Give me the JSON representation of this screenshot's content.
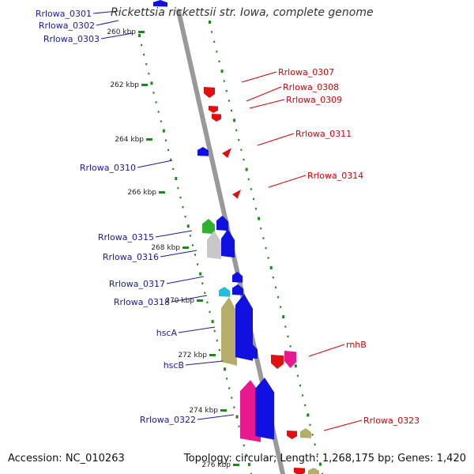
{
  "title": "Rickettsia rickettsii str. Iowa, complete genome",
  "footer": {
    "accession": "Accession: NC_010263",
    "summary": "Topology: circular; Length: 1,268,175 bp; Genes: 1,420"
  },
  "ruler": [
    {
      "label": "260 kbp",
      "kbp": 260
    },
    {
      "label": "262 kbp",
      "kbp": 262
    },
    {
      "label": "264 kbp",
      "kbp": 264
    },
    {
      "label": "266 kbp",
      "kbp": 266
    },
    {
      "label": "268 kbp",
      "kbp": 268
    },
    {
      "label": "270 kbp",
      "kbp": 270
    },
    {
      "label": "272 kbp",
      "kbp": 272
    },
    {
      "label": "274 kbp",
      "kbp": 274
    },
    {
      "label": "276 kbp",
      "kbp": 276
    }
  ],
  "colors": {
    "backbone": "#999999",
    "forward_label": "#1a1aa6",
    "reverse_label": "#d40000",
    "cds_forward": "#1010e0",
    "cds_reverse": "#e01010",
    "hypothetical": "#c8c8c8",
    "trna": "#22c0d8",
    "rrna": "#30b030",
    "olive": "#b5ad6a",
    "magenta": "#e8198f",
    "ticks": "#1a8a1a"
  },
  "genes": {
    "reverse_labels": [
      "Rrlowa_0307",
      "Rrlowa_0308",
      "Rrlowa_0309",
      "Rrlowa_0311",
      "Rrlowa_0314",
      "rnhB",
      "Rrlowa_0323"
    ],
    "forward_labels": [
      "Rrlowa_0301",
      "Rrlowa_0302",
      "Rrlowa_0303",
      "Rrlowa_0310",
      "Rrlowa_0315",
      "Rrlowa_0316",
      "Rrlowa_0317",
      "Rrlowa_0318",
      "hscA",
      "hscB",
      "Rrlowa_0322"
    ]
  }
}
